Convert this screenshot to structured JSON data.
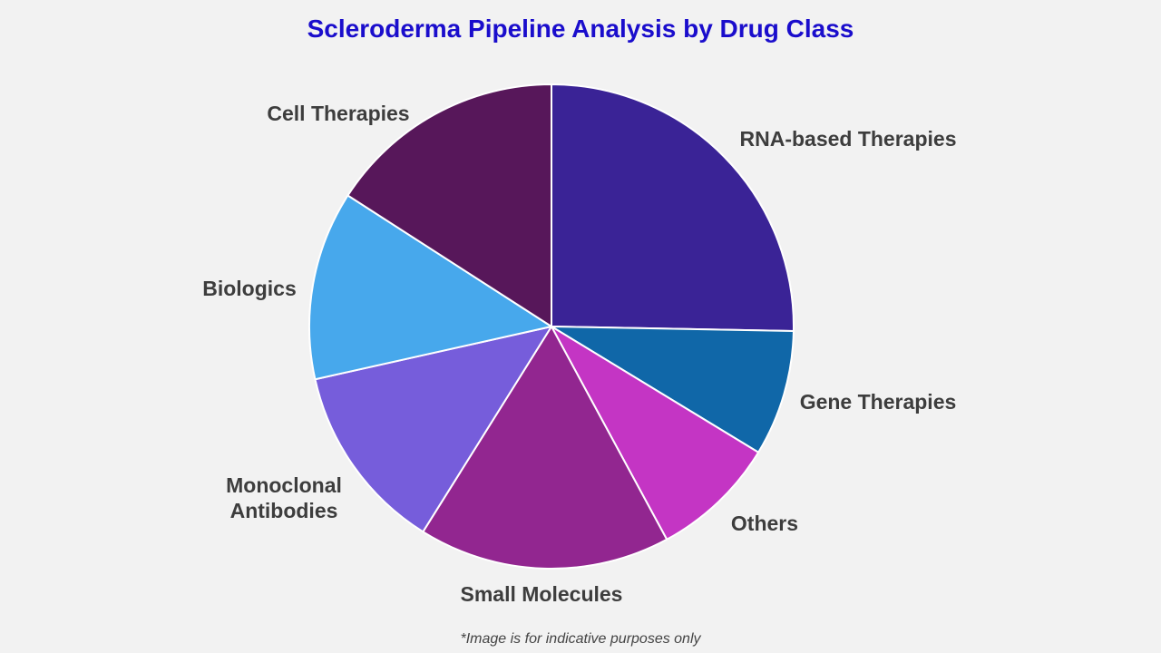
{
  "chart_data": {
    "type": "pie",
    "title": "Scleroderma Pipeline Analysis by Drug Class",
    "footnote": "*Image is for indicative purposes only",
    "slices": [
      {
        "label": "RNA-based Therapies",
        "value": 25.3,
        "color": "#3a2396"
      },
      {
        "label": "Gene Therapies",
        "value": 8.4,
        "color": "#1067a8"
      },
      {
        "label": "Others",
        "value": 8.4,
        "color": "#c435c4"
      },
      {
        "label": "Small Molecules",
        "value": 16.8,
        "color": "#922690"
      },
      {
        "label": "Monoclonal Antibodies",
        "value": 12.6,
        "color": "#765ddb"
      },
      {
        "label": "Biologics",
        "value": 12.6,
        "color": "#47a8ec"
      },
      {
        "label": "Cell Therapies",
        "value": 15.9,
        "color": "#57175a"
      }
    ],
    "start": "top",
    "direction": "clockwise",
    "legend": "none"
  }
}
